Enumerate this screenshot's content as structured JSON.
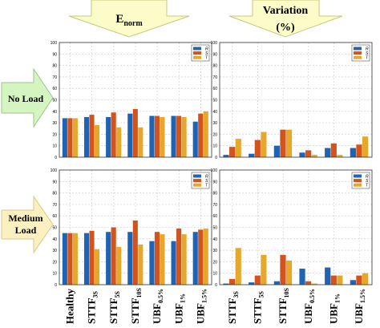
{
  "headers": {
    "enorm": {
      "main": "E",
      "sub": "norm"
    },
    "variation": {
      "line1": "Variation",
      "line2": "(%)"
    }
  },
  "row_labels": {
    "no_load": "No Load",
    "medium_load": [
      "Medium",
      "Load"
    ]
  },
  "legend": {
    "series": [
      "R",
      "S",
      "T"
    ]
  },
  "colors": {
    "R": "#1f63b5",
    "S": "#d2531c",
    "T": "#e6a82a",
    "arrow_fill": "#fcfcc8",
    "arrow_stroke": "#c8c880",
    "row_arrow_fill": "#d4f4c0",
    "row_arrow_stroke": "#9ac88a",
    "grid": "#c8c8c8"
  },
  "chart_data": [
    {
      "type": "bar",
      "name": "enorm-no-load",
      "series_names": [
        "R",
        "S",
        "T"
      ],
      "categories": [
        "Healthy",
        "STTF3S",
        "STTF5S",
        "STTF10S",
        "UBF0.5%",
        "UBF1%",
        "UBF1.5%"
      ],
      "values": [
        [
          34,
          34,
          34
        ],
        [
          35,
          37,
          28
        ],
        [
          35,
          39,
          26
        ],
        [
          38,
          42,
          26
        ],
        [
          36,
          36,
          35
        ],
        [
          36,
          36,
          35
        ],
        [
          31,
          38,
          40
        ]
      ],
      "ylim": [
        0,
        100
      ],
      "yticks": [
        0,
        10,
        20,
        30,
        40,
        50,
        60,
        70,
        80,
        90,
        100
      ],
      "grid": true,
      "legend": "top-right"
    },
    {
      "type": "bar",
      "name": "variation-no-load",
      "series_names": [
        "R",
        "S",
        "T"
      ],
      "categories": [
        "STTF3S",
        "STTF5S",
        "STTF10S",
        "UBF0.5%",
        "UBF1%",
        "UBF1.5%"
      ],
      "values": [
        [
          2,
          9,
          16
        ],
        [
          3,
          15,
          22
        ],
        [
          10,
          24,
          24
        ],
        [
          4,
          6,
          2
        ],
        [
          8,
          12,
          2
        ],
        [
          8,
          11,
          18
        ]
      ],
      "ylim": [
        0,
        100
      ],
      "yticks": [
        0,
        10,
        20,
        30,
        40,
        50,
        60,
        70,
        80,
        90,
        100
      ],
      "grid": true,
      "legend": "top-right"
    },
    {
      "type": "bar",
      "name": "enorm-medium-load",
      "series_names": [
        "R",
        "S",
        "T"
      ],
      "categories": [
        "Healthy",
        "STTF3S",
        "STTF5S",
        "STTF10S",
        "UBF0.5%",
        "UBF1%",
        "UBF1.5%"
      ],
      "values": [
        [
          45,
          45,
          45
        ],
        [
          45,
          47,
          31
        ],
        [
          46,
          50,
          33
        ],
        [
          46,
          56,
          35
        ],
        [
          38,
          46,
          44
        ],
        [
          38,
          49,
          44
        ],
        [
          46,
          48,
          49
        ]
      ],
      "ylim": [
        0,
        100
      ],
      "yticks": [
        0,
        10,
        20,
        30,
        40,
        50,
        60,
        70,
        80,
        90,
        100
      ],
      "grid": true,
      "legend": "top-right"
    },
    {
      "type": "bar",
      "name": "variation-medium-load",
      "series_names": [
        "R",
        "S",
        "T"
      ],
      "categories": [
        "STTF3S",
        "STTF5S",
        "STTF10S",
        "UBF0.5%",
        "UBF1%",
        "UBF1.5%"
      ],
      "values": [
        [
          1,
          5,
          32
        ],
        [
          2,
          8,
          26
        ],
        [
          3,
          26,
          21
        ],
        [
          14,
          3,
          1
        ],
        [
          15,
          8,
          8
        ],
        [
          4,
          8,
          10
        ]
      ],
      "ylim": [
        0,
        100
      ],
      "yticks": [
        0,
        10,
        20,
        30,
        40,
        50,
        60,
        70,
        80,
        90,
        100
      ],
      "grid": true,
      "legend": "top-right"
    }
  ],
  "x_labels_left": [
    {
      "main": "Healthy",
      "sub": ""
    },
    {
      "main": "STTF",
      "sub": "3S"
    },
    {
      "main": "STTF",
      "sub": "5S"
    },
    {
      "main": "STTF",
      "sub": "10S"
    },
    {
      "main": "UBF",
      "sub": "0.5%"
    },
    {
      "main": "UBF",
      "sub": "1%"
    },
    {
      "main": "UBF",
      "sub": "1.5%"
    }
  ],
  "x_labels_right": [
    {
      "main": "STTF",
      "sub": "3S"
    },
    {
      "main": "STTF",
      "sub": "5S"
    },
    {
      "main": "STTF",
      "sub": "10S"
    },
    {
      "main": "UBF",
      "sub": "0.5%"
    },
    {
      "main": "UBF",
      "sub": "1%"
    },
    {
      "main": "UBF",
      "sub": "1.5%"
    }
  ]
}
